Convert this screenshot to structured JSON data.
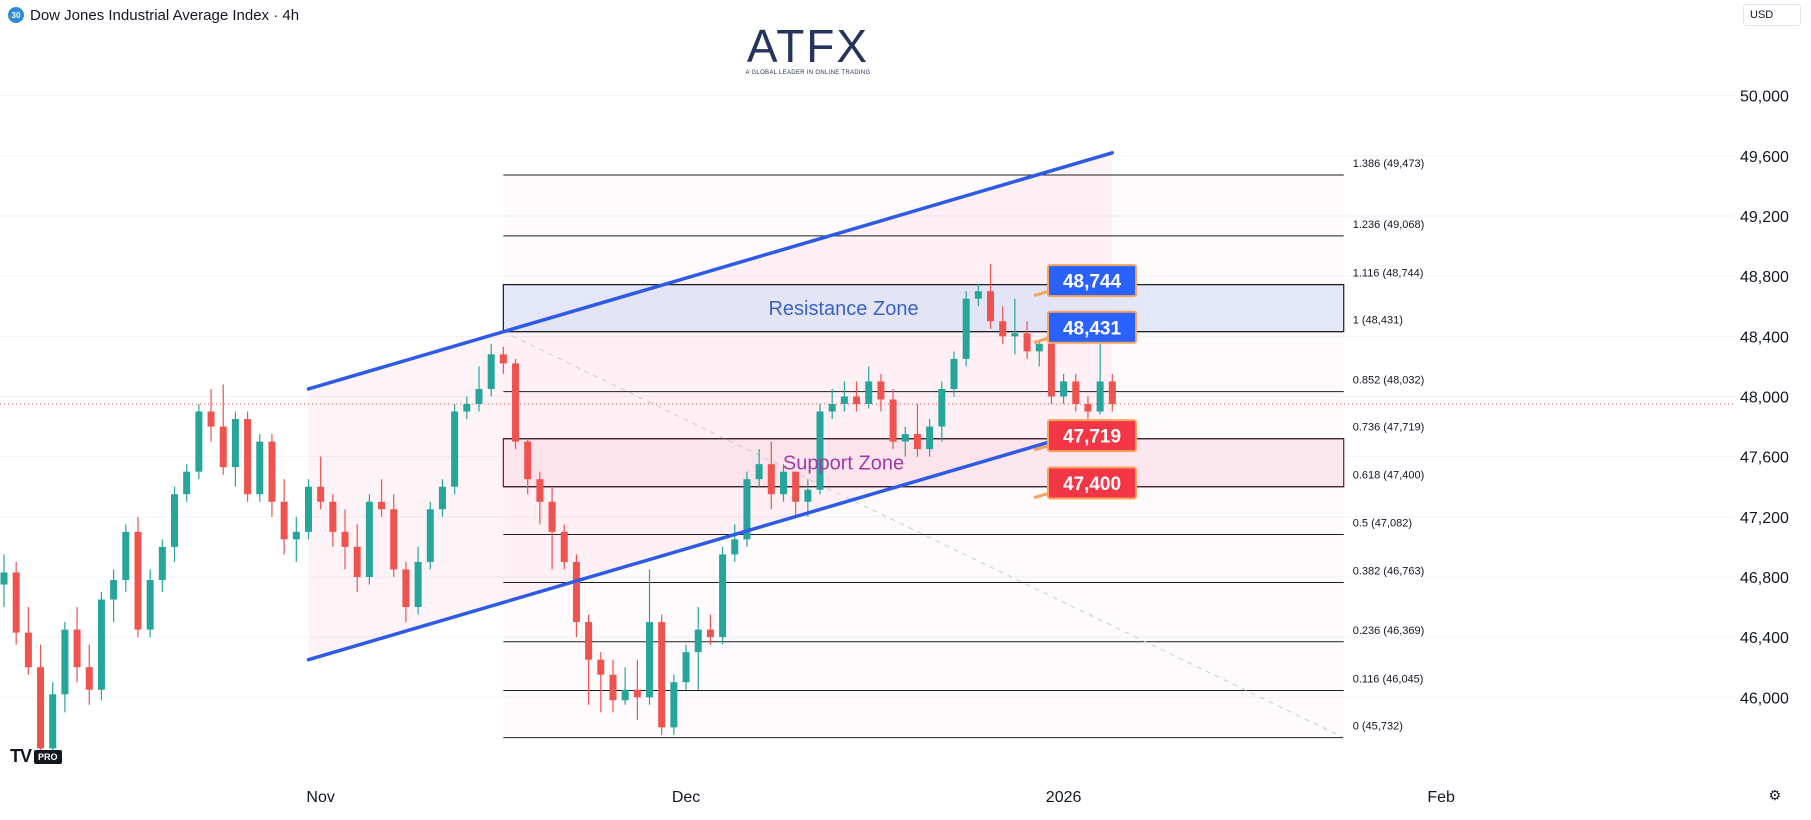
{
  "header": {
    "symbol_badge": "30",
    "title": "Dow Jones Industrial Average Index · 4h"
  },
  "currency": "USD",
  "logo": {
    "name": "ATFX",
    "tagline": "A GLOBAL LEADER IN ONLINE TRADING"
  },
  "tv_badge": {
    "mark": "TV",
    "pro": "PRO"
  },
  "colors": {
    "up": "#26a69a",
    "down": "#ef5350",
    "channel": "#2e5be6",
    "resistance": "#2962ff",
    "support": "#f23645"
  },
  "chart_data": {
    "type": "candlestick",
    "timeframe": "4h",
    "y_range": [
      45450,
      50450
    ],
    "x_range": [
      "2025-10-06",
      "2026-02-28"
    ],
    "y_ticks": [
      46000,
      46400,
      46800,
      47200,
      47600,
      48000,
      48400,
      48800,
      49200,
      49600,
      50000
    ],
    "y_tick_labels": [
      "46,000",
      "46,400",
      "46,800",
      "47,200",
      "47,600",
      "48,000",
      "48,400",
      "48,800",
      "49,200",
      "49,600",
      "50,000"
    ],
    "x_ticks": [
      {
        "label": "Nov",
        "date": "2025-11-01"
      },
      {
        "label": "Dec",
        "date": "2025-12-01"
      },
      {
        "label": "2026",
        "date": "2026-01-01"
      },
      {
        "label": "Feb",
        "date": "2026-02-01"
      }
    ],
    "last_price": 47950,
    "candles": [
      {
        "date": "2025-10-06",
        "o": 46750,
        "h": 46950,
        "l": 46600,
        "c": 46830
      },
      {
        "date": "2025-10-07",
        "o": 46830,
        "h": 46900,
        "l": 46350,
        "c": 46430
      },
      {
        "date": "2025-10-08",
        "o": 46430,
        "h": 46600,
        "l": 46150,
        "c": 46200
      },
      {
        "date": "2025-10-09",
        "o": 46200,
        "h": 46350,
        "l": 45600,
        "c": 45660
      },
      {
        "date": "2025-10-10",
        "o": 45660,
        "h": 46100,
        "l": 45560,
        "c": 46020
      },
      {
        "date": "2025-10-11",
        "o": 46020,
        "h": 46500,
        "l": 45900,
        "c": 46450
      },
      {
        "date": "2025-10-12",
        "o": 46450,
        "h": 46600,
        "l": 46100,
        "c": 46200
      },
      {
        "date": "2025-10-13",
        "o": 46200,
        "h": 46350,
        "l": 45950,
        "c": 46050
      },
      {
        "date": "2025-10-14",
        "o": 46050,
        "h": 46700,
        "l": 45980,
        "c": 46650
      },
      {
        "date": "2025-10-15",
        "o": 46650,
        "h": 46850,
        "l": 46500,
        "c": 46780
      },
      {
        "date": "2025-10-16",
        "o": 46780,
        "h": 47150,
        "l": 46700,
        "c": 47100
      },
      {
        "date": "2025-10-17",
        "o": 47100,
        "h": 47200,
        "l": 46400,
        "c": 46450
      },
      {
        "date": "2025-10-18",
        "o": 46450,
        "h": 46850,
        "l": 46400,
        "c": 46780
      },
      {
        "date": "2025-10-19",
        "o": 46780,
        "h": 47050,
        "l": 46700,
        "c": 47000
      },
      {
        "date": "2025-10-20",
        "o": 47000,
        "h": 47400,
        "l": 46900,
        "c": 47350
      },
      {
        "date": "2025-10-21",
        "o": 47350,
        "h": 47550,
        "l": 47300,
        "c": 47500
      },
      {
        "date": "2025-10-22",
        "o": 47500,
        "h": 47950,
        "l": 47450,
        "c": 47900
      },
      {
        "date": "2025-10-23",
        "o": 47900,
        "h": 48050,
        "l": 47700,
        "c": 47800
      },
      {
        "date": "2025-10-24",
        "o": 47800,
        "h": 48080,
        "l": 47480,
        "c": 47530
      },
      {
        "date": "2025-10-25",
        "o": 47530,
        "h": 47900,
        "l": 47400,
        "c": 47850
      },
      {
        "date": "2025-10-26",
        "o": 47850,
        "h": 47900,
        "l": 47300,
        "c": 47350
      },
      {
        "date": "2025-10-27",
        "o": 47350,
        "h": 47750,
        "l": 47300,
        "c": 47700
      },
      {
        "date": "2025-10-28",
        "o": 47700,
        "h": 47750,
        "l": 47200,
        "c": 47300
      },
      {
        "date": "2025-10-29",
        "o": 47300,
        "h": 47450,
        "l": 46950,
        "c": 47050
      },
      {
        "date": "2025-10-30",
        "o": 47050,
        "h": 47200,
        "l": 46900,
        "c": 47100
      },
      {
        "date": "2025-10-31",
        "o": 47100,
        "h": 47450,
        "l": 47050,
        "c": 47400
      },
      {
        "date": "2025-11-01",
        "o": 47400,
        "h": 47600,
        "l": 47250,
        "c": 47300
      },
      {
        "date": "2025-11-02",
        "o": 47300,
        "h": 47350,
        "l": 47000,
        "c": 47100
      },
      {
        "date": "2025-11-03",
        "o": 47100,
        "h": 47250,
        "l": 46850,
        "c": 47000
      },
      {
        "date": "2025-11-04",
        "o": 47000,
        "h": 47150,
        "l": 46700,
        "c": 46800
      },
      {
        "date": "2025-11-05",
        "o": 46800,
        "h": 47350,
        "l": 46750,
        "c": 47300
      },
      {
        "date": "2025-11-06",
        "o": 47300,
        "h": 47450,
        "l": 47200,
        "c": 47250
      },
      {
        "date": "2025-11-07",
        "o": 47250,
        "h": 47350,
        "l": 46800,
        "c": 46850
      },
      {
        "date": "2025-11-08",
        "o": 46850,
        "h": 46900,
        "l": 46500,
        "c": 46600
      },
      {
        "date": "2025-11-09",
        "o": 46600,
        "h": 47000,
        "l": 46550,
        "c": 46900
      },
      {
        "date": "2025-11-10",
        "o": 46900,
        "h": 47300,
        "l": 46850,
        "c": 47250
      },
      {
        "date": "2025-11-11",
        "o": 47250,
        "h": 47450,
        "l": 47200,
        "c": 47400
      },
      {
        "date": "2025-11-12",
        "o": 47400,
        "h": 47950,
        "l": 47350,
        "c": 47900
      },
      {
        "date": "2025-11-13",
        "o": 47900,
        "h": 48000,
        "l": 47850,
        "c": 47950
      },
      {
        "date": "2025-11-14",
        "o": 47950,
        "h": 48200,
        "l": 47900,
        "c": 48050
      },
      {
        "date": "2025-11-15",
        "o": 48050,
        "h": 48350,
        "l": 48000,
        "c": 48280
      },
      {
        "date": "2025-11-16",
        "o": 48280,
        "h": 48330,
        "l": 48150,
        "c": 48220
      },
      {
        "date": "2025-11-17",
        "o": 48220,
        "h": 48250,
        "l": 47650,
        "c": 47700
      },
      {
        "date": "2025-11-18",
        "o": 47700,
        "h": 47720,
        "l": 47350,
        "c": 47450
      },
      {
        "date": "2025-11-19",
        "o": 47450,
        "h": 47500,
        "l": 47150,
        "c": 47300
      },
      {
        "date": "2025-11-20",
        "o": 47300,
        "h": 47400,
        "l": 46850,
        "c": 47100
      },
      {
        "date": "2025-11-21",
        "o": 47100,
        "h": 47150,
        "l": 46850,
        "c": 46900
      },
      {
        "date": "2025-11-22",
        "o": 46900,
        "h": 46950,
        "l": 46400,
        "c": 46500
      },
      {
        "date": "2025-11-23",
        "o": 46500,
        "h": 46550,
        "l": 45950,
        "c": 46250
      },
      {
        "date": "2025-11-24",
        "o": 46250,
        "h": 46300,
        "l": 45900,
        "c": 46150
      },
      {
        "date": "2025-11-25",
        "o": 46150,
        "h": 46250,
        "l": 45900,
        "c": 45980
      },
      {
        "date": "2025-11-26",
        "o": 45980,
        "h": 46200,
        "l": 45950,
        "c": 46050
      },
      {
        "date": "2025-11-27",
        "o": 46050,
        "h": 46250,
        "l": 45850,
        "c": 46000
      },
      {
        "date": "2025-11-28",
        "o": 46000,
        "h": 46850,
        "l": 45950,
        "c": 46500
      },
      {
        "date": "2025-11-29",
        "o": 46500,
        "h": 46550,
        "l": 45750,
        "c": 45800
      },
      {
        "date": "2025-11-30",
        "o": 45800,
        "h": 46150,
        "l": 45750,
        "c": 46100
      },
      {
        "date": "2025-12-01",
        "o": 46100,
        "h": 46350,
        "l": 46050,
        "c": 46300
      },
      {
        "date": "2025-12-02",
        "o": 46300,
        "h": 46600,
        "l": 46050,
        "c": 46450
      },
      {
        "date": "2025-12-03",
        "o": 46450,
        "h": 46550,
        "l": 46350,
        "c": 46400
      },
      {
        "date": "2025-12-04",
        "o": 46400,
        "h": 47000,
        "l": 46350,
        "c": 46950
      },
      {
        "date": "2025-12-05",
        "o": 46950,
        "h": 47150,
        "l": 46900,
        "c": 47050
      },
      {
        "date": "2025-12-06",
        "o": 47050,
        "h": 47500,
        "l": 47000,
        "c": 47450
      },
      {
        "date": "2025-12-07",
        "o": 47450,
        "h": 47650,
        "l": 47400,
        "c": 47550
      },
      {
        "date": "2025-12-08",
        "o": 47550,
        "h": 47700,
        "l": 47250,
        "c": 47350
      },
      {
        "date": "2025-12-09",
        "o": 47350,
        "h": 47550,
        "l": 47300,
        "c": 47500
      },
      {
        "date": "2025-12-10",
        "o": 47500,
        "h": 47500,
        "l": 47200,
        "c": 47300
      },
      {
        "date": "2025-12-11",
        "o": 47300,
        "h": 47450,
        "l": 47200,
        "c": 47380
      },
      {
        "date": "2025-12-12",
        "o": 47380,
        "h": 47950,
        "l": 47350,
        "c": 47900
      },
      {
        "date": "2025-12-13",
        "o": 47900,
        "h": 48050,
        "l": 47850,
        "c": 47950
      },
      {
        "date": "2025-12-14",
        "o": 47950,
        "h": 48100,
        "l": 47900,
        "c": 48000
      },
      {
        "date": "2025-12-15",
        "o": 48000,
        "h": 48100,
        "l": 47900,
        "c": 47950
      },
      {
        "date": "2025-12-16",
        "o": 47950,
        "h": 48200,
        "l": 47920,
        "c": 48100
      },
      {
        "date": "2025-12-17",
        "o": 48100,
        "h": 48150,
        "l": 47900,
        "c": 47980
      },
      {
        "date": "2025-12-18",
        "o": 47980,
        "h": 48050,
        "l": 47650,
        "c": 47700
      },
      {
        "date": "2025-12-19",
        "o": 47700,
        "h": 47800,
        "l": 47600,
        "c": 47750
      },
      {
        "date": "2025-12-20",
        "o": 47750,
        "h": 47950,
        "l": 47600,
        "c": 47650
      },
      {
        "date": "2025-12-21",
        "o": 47650,
        "h": 47850,
        "l": 47600,
        "c": 47800
      },
      {
        "date": "2025-12-22",
        "o": 47800,
        "h": 48100,
        "l": 47700,
        "c": 48050
      },
      {
        "date": "2025-12-23",
        "o": 48050,
        "h": 48300,
        "l": 48000,
        "c": 48250
      },
      {
        "date": "2025-12-24",
        "o": 48250,
        "h": 48700,
        "l": 48200,
        "c": 48650
      },
      {
        "date": "2025-12-25",
        "o": 48650,
        "h": 48750,
        "l": 48600,
        "c": 48700
      },
      {
        "date": "2025-12-26",
        "o": 48700,
        "h": 48880,
        "l": 48450,
        "c": 48500
      },
      {
        "date": "2025-12-27",
        "o": 48500,
        "h": 48600,
        "l": 48350,
        "c": 48400
      },
      {
        "date": "2025-12-28",
        "o": 48400,
        "h": 48650,
        "l": 48280,
        "c": 48420
      },
      {
        "date": "2025-12-29",
        "o": 48420,
        "h": 48500,
        "l": 48250,
        "c": 48300
      },
      {
        "date": "2025-12-30",
        "o": 48300,
        "h": 48380,
        "l": 48200,
        "c": 48350
      },
      {
        "date": "2025-12-31",
        "o": 48350,
        "h": 48400,
        "l": 47950,
        "c": 48000
      },
      {
        "date": "2026-01-01",
        "o": 48000,
        "h": 48150,
        "l": 47950,
        "c": 48100
      },
      {
        "date": "2026-01-02",
        "o": 48100,
        "h": 48150,
        "l": 47900,
        "c": 47950
      },
      {
        "date": "2026-01-03",
        "o": 47950,
        "h": 48000,
        "l": 47850,
        "c": 47900
      },
      {
        "date": "2026-01-04",
        "o": 47900,
        "h": 48350,
        "l": 47880,
        "c": 48100
      },
      {
        "date": "2026-01-05",
        "o": 48100,
        "h": 48150,
        "l": 47900,
        "c": 47950
      }
    ],
    "fib_levels": [
      {
        "ratio": "1.386",
        "value": 49473,
        "label": "1.386 (49,473)"
      },
      {
        "ratio": "1.236",
        "value": 49068,
        "label": "1.236 (49,068)"
      },
      {
        "ratio": "1.116",
        "value": 48744,
        "label": "1.116 (48,744)"
      },
      {
        "ratio": "1",
        "value": 48431,
        "label": "1 (48,431)"
      },
      {
        "ratio": "0.852",
        "value": 48032,
        "label": "0.852 (48,032)"
      },
      {
        "ratio": "0.736",
        "value": 47719,
        "label": "0.736 (47,719)"
      },
      {
        "ratio": "0.618",
        "value": 47400,
        "label": "0.618 (47,400)"
      },
      {
        "ratio": "0.5",
        "value": 47082,
        "label": "0.5 (47,082)"
      },
      {
        "ratio": "0.382",
        "value": 46763,
        "label": "0.382 (46,763)"
      },
      {
        "ratio": "0.236",
        "value": 46369,
        "label": "0.236 (46,369)"
      },
      {
        "ratio": "0.116",
        "value": 46045,
        "label": "0.116 (46,045)"
      },
      {
        "ratio": "0",
        "value": 45732,
        "label": "0 (45,732)"
      }
    ],
    "fib_range": {
      "start": "2025-11-16",
      "end": "2026-01-24",
      "trend_from": 48431,
      "trend_to": 45732
    },
    "channel": {
      "upper": {
        "from": {
          "date": "2025-10-31",
          "price": 48050
        },
        "to": {
          "date": "2026-01-05",
          "price": 49620
        }
      },
      "lower": {
        "from": {
          "date": "2025-10-31",
          "price": 46250
        },
        "to": {
          "date": "2026-01-05",
          "price": 47820
        }
      },
      "shade_start": "2025-10-31",
      "shade_end": "2026-01-05"
    },
    "zones": [
      {
        "name": "Resistance Zone",
        "label": "Resistance Zone",
        "from": 48431,
        "to": 48744,
        "start": "2025-11-16",
        "end": "2026-01-24",
        "fill": "#dbe4fb",
        "border": "#1e1e1e",
        "text_color": "#3a63c9"
      },
      {
        "name": "Support Zone",
        "label": "Support Zone",
        "from": 47400,
        "to": 47719,
        "start": "2025-11-16",
        "end": "2026-01-24",
        "fill": "#fce4ec",
        "border": "#7a1335",
        "text_color": "#a03aa8"
      }
    ],
    "callouts": [
      {
        "label": "48,744",
        "value": 48744,
        "color": "#2962ff",
        "at": 48770
      },
      {
        "label": "48,431",
        "value": 48431,
        "color": "#2962ff",
        "at": 48460
      },
      {
        "label": "47,719",
        "value": 47719,
        "color": "#f23645",
        "at": 47740
      },
      {
        "label": "47,400",
        "value": 47400,
        "color": "#f23645",
        "at": 47425
      }
    ]
  }
}
